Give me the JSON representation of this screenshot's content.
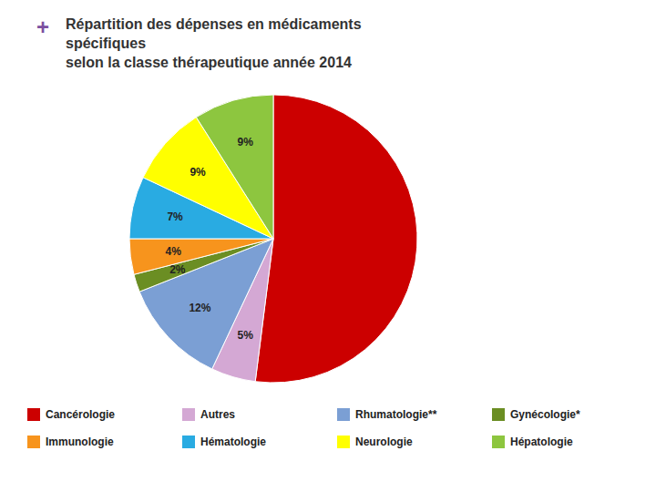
{
  "chart_data": {
    "type": "pie",
    "title": "Répartition des dépenses en médicaments\nspécifiques\nselon la classe thérapeutique année 2014",
    "annotations": [
      "+"
    ],
    "categories": [
      "Cancérologie",
      "Autres",
      "Rhumatologie**",
      "Gynécologie*",
      "Immunologie",
      "Hématologie",
      "Neurologie",
      "Hépatologie"
    ],
    "values": [
      52,
      5,
      12,
      2,
      4,
      7,
      9,
      9
    ],
    "colors": [
      "#CC0000",
      "#D4A8D4",
      "#7B9FD4",
      "#6B8E23",
      "#F7941D",
      "#29ABE2",
      "#FFFF00",
      "#8DC63F"
    ],
    "value_labels": [
      null,
      "5%",
      "12%",
      "2%",
      "4%",
      "7%",
      "9%",
      "9%"
    ],
    "data_labels": true,
    "legend": "bottom"
  }
}
